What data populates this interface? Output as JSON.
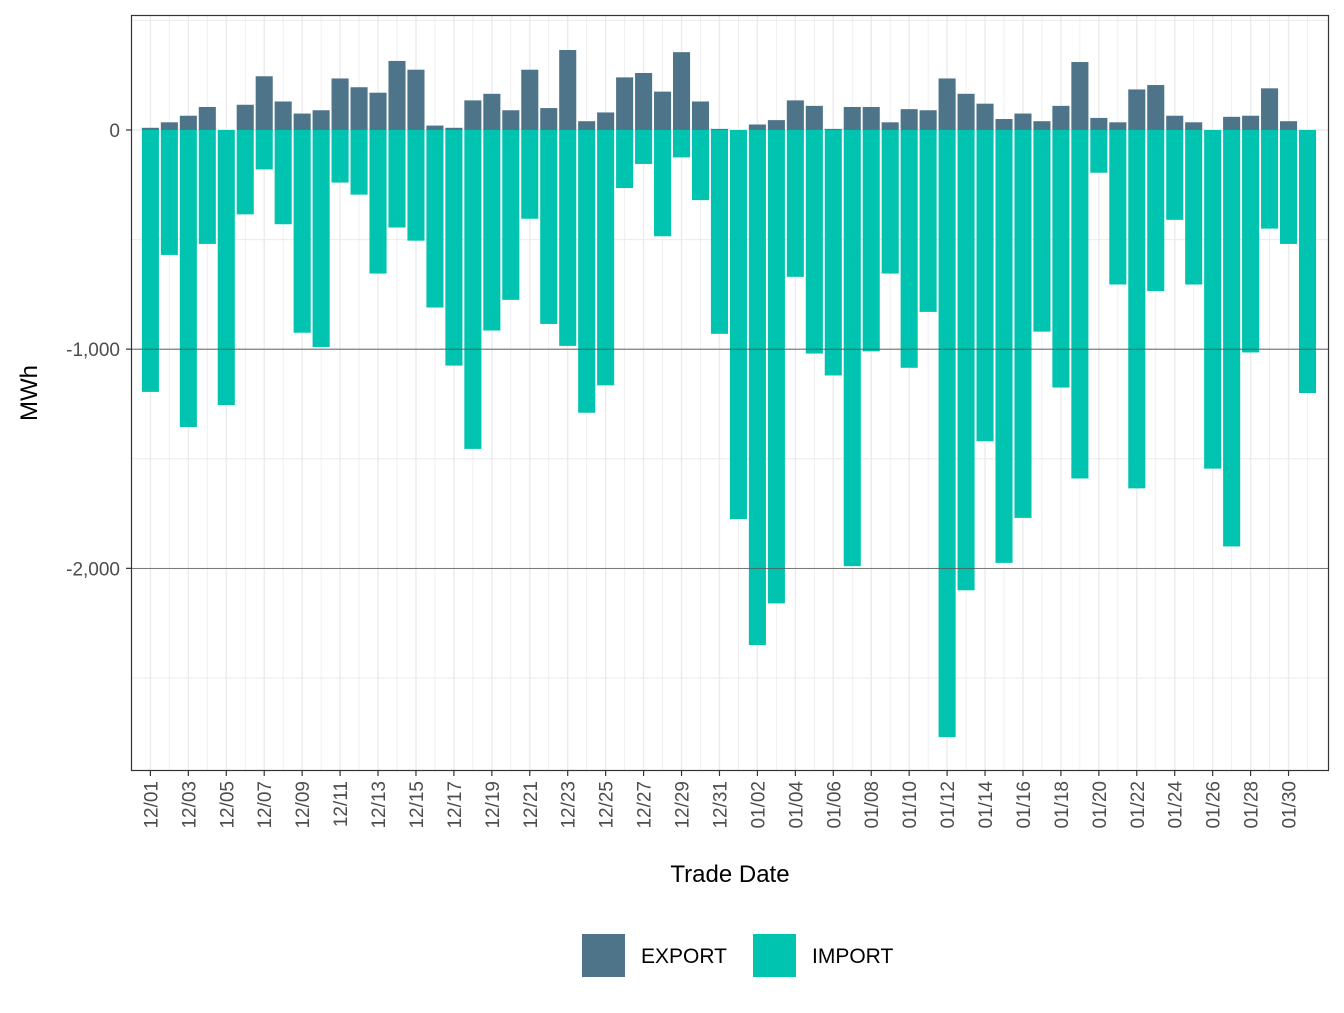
{
  "chart_data": {
    "type": "bar",
    "stacked": true,
    "title": "",
    "xlabel": "Trade Date",
    "ylabel": "MWh",
    "ylim": [
      -2920,
      520
    ],
    "yticks": [
      0,
      -1000,
      -2000
    ],
    "ytick_labels": [
      "0",
      "-1,000",
      "-2,000"
    ],
    "grid": true,
    "legend_position": "bottom",
    "categories": [
      "12/01",
      "12/02",
      "12/03",
      "12/04",
      "12/05",
      "12/06",
      "12/07",
      "12/08",
      "12/09",
      "12/10",
      "12/11",
      "12/12",
      "12/13",
      "12/14",
      "12/15",
      "12/16",
      "12/17",
      "12/18",
      "12/19",
      "12/20",
      "12/21",
      "12/22",
      "12/23",
      "12/24",
      "12/25",
      "12/26",
      "12/27",
      "12/28",
      "12/29",
      "12/30",
      "12/31",
      "01/01",
      "01/02",
      "01/03",
      "01/04",
      "01/05",
      "01/06",
      "01/07",
      "01/08",
      "01/09",
      "01/10",
      "01/11",
      "01/12",
      "01/13",
      "01/14",
      "01/15",
      "01/16",
      "01/17",
      "01/18",
      "01/19",
      "01/20",
      "01/21",
      "01/22",
      "01/23",
      "01/24",
      "01/25",
      "01/26",
      "01/27",
      "01/28",
      "01/29",
      "01/30",
      "01/31"
    ],
    "xtick_labels": [
      "12/01",
      "12/03",
      "12/05",
      "12/07",
      "12/09",
      "12/11",
      "12/13",
      "12/15",
      "12/17",
      "12/19",
      "12/21",
      "12/23",
      "12/25",
      "12/27",
      "12/29",
      "12/31",
      "01/02",
      "01/04",
      "01/06",
      "01/08",
      "01/10",
      "01/12",
      "01/14",
      "01/16",
      "01/18",
      "01/20",
      "01/22",
      "01/24",
      "01/26",
      "01/28",
      "01/30"
    ],
    "series": [
      {
        "name": "EXPORT",
        "color": "#4e7489",
        "values": [
          10,
          35,
          65,
          105,
          0,
          115,
          245,
          130,
          75,
          90,
          235,
          195,
          170,
          315,
          275,
          20,
          10,
          135,
          165,
          90,
          275,
          100,
          365,
          40,
          80,
          240,
          260,
          175,
          355,
          130,
          5,
          0,
          25,
          45,
          135,
          110,
          5,
          105,
          105,
          35,
          95,
          90,
          235,
          165,
          120,
          50,
          75,
          40,
          110,
          310,
          55,
          35,
          185,
          205,
          65,
          35,
          0,
          60,
          65,
          190,
          40,
          0
        ]
      },
      {
        "name": "IMPORT",
        "color": "#00c4b0",
        "values": [
          -1195,
          -570,
          -1355,
          -520,
          -1255,
          -385,
          -180,
          -430,
          -925,
          -990,
          -240,
          -295,
          -655,
          -445,
          -505,
          -810,
          -1075,
          -1455,
          -915,
          -775,
          -405,
          -885,
          -985,
          -1290,
          -1165,
          -265,
          -155,
          -485,
          -125,
          -320,
          -930,
          -1775,
          -2350,
          -2160,
          -670,
          -1020,
          -1120,
          -1990,
          -1010,
          -655,
          -1085,
          -830,
          -2770,
          -2100,
          -1420,
          -1975,
          -1770,
          -920,
          -1175,
          -1590,
          -195,
          -705,
          -1635,
          -735,
          -410,
          -705,
          -1545,
          -1900,
          -1015,
          -450,
          -520,
          -1200
        ]
      }
    ]
  }
}
